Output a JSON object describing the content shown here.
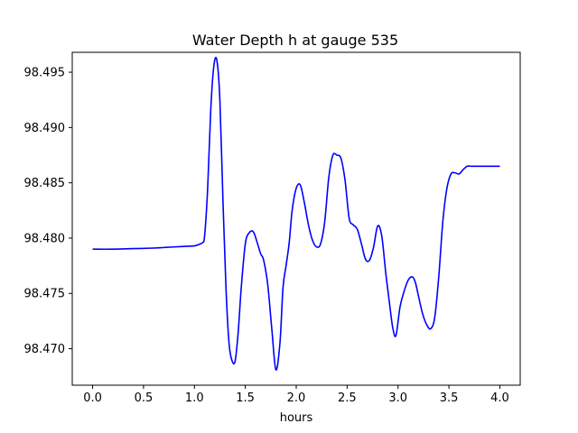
{
  "chart_data": {
    "type": "line",
    "title": "Water Depth h at gauge 535",
    "xlabel": "hours",
    "ylabel": "",
    "xlim": [
      -0.2,
      4.2
    ],
    "ylim": [
      98.4667,
      98.4968
    ],
    "xticks": [
      0.0,
      0.5,
      1.0,
      1.5,
      2.0,
      2.5,
      3.0,
      3.5,
      4.0
    ],
    "xtick_labels": [
      "0.0",
      "0.5",
      "1.0",
      "1.5",
      "2.0",
      "2.5",
      "3.0",
      "3.5",
      "4.0"
    ],
    "yticks": [
      98.47,
      98.475,
      98.48,
      98.485,
      98.49,
      98.495
    ],
    "ytick_labels": [
      "98.470",
      "98.475",
      "98.480",
      "98.485",
      "98.490",
      "98.495"
    ],
    "grid": false,
    "series": [
      {
        "color": "#0000ff",
        "x": [
          0.0,
          0.2,
          0.4,
          0.6,
          0.7,
          0.8,
          0.9,
          1.0,
          1.05,
          1.08,
          1.1,
          1.13,
          1.16,
          1.19,
          1.22,
          1.25,
          1.28,
          1.31,
          1.34,
          1.37,
          1.4,
          1.43,
          1.46,
          1.5,
          1.54,
          1.58,
          1.62,
          1.65,
          1.68,
          1.72,
          1.76,
          1.8,
          1.84,
          1.87,
          1.9,
          1.93,
          1.96,
          2.0,
          2.04,
          2.08,
          2.12,
          2.16,
          2.2,
          2.24,
          2.28,
          2.32,
          2.36,
          2.4,
          2.44,
          2.48,
          2.52,
          2.56,
          2.6,
          2.64,
          2.68,
          2.72,
          2.76,
          2.8,
          2.84,
          2.88,
          2.92,
          2.95,
          2.98,
          3.02,
          3.06,
          3.1,
          3.14,
          3.17,
          3.2,
          3.24,
          3.28,
          3.32,
          3.36,
          3.4,
          3.44,
          3.48,
          3.52,
          3.56,
          3.6,
          3.64,
          3.68,
          3.72,
          3.76,
          3.8,
          3.84,
          3.88,
          3.92,
          3.96,
          4.0
        ],
        "y": [
          98.479,
          98.479,
          98.47905,
          98.4791,
          98.47915,
          98.4792,
          98.47925,
          98.4793,
          98.47945,
          98.4796,
          98.4802,
          98.4845,
          98.4915,
          98.4955,
          98.4961,
          98.4925,
          98.4835,
          98.4755,
          98.4705,
          98.4689,
          98.4689,
          98.4715,
          98.4755,
          98.4795,
          98.4805,
          98.48055,
          98.4795,
          98.4786,
          98.478,
          98.4758,
          98.4718,
          98.4681,
          98.4705,
          98.4755,
          98.4775,
          98.4795,
          98.4825,
          98.4845,
          98.4848,
          98.4832,
          98.4812,
          98.4798,
          98.4792,
          98.4795,
          98.4815,
          98.4855,
          98.4875,
          98.4875,
          98.4872,
          98.4852,
          98.4818,
          98.4812,
          98.4808,
          98.4795,
          98.4781,
          98.478,
          98.4792,
          98.4811,
          98.4802,
          98.4768,
          98.4738,
          98.4718,
          98.4712,
          98.4738,
          98.4752,
          98.4762,
          98.4765,
          98.476,
          98.4748,
          98.4732,
          98.4722,
          98.4718,
          98.4728,
          98.4765,
          98.4815,
          98.4845,
          98.4858,
          98.4859,
          98.4858,
          98.4862,
          98.4865,
          98.4865,
          98.4865,
          98.4865,
          98.4865,
          98.4865,
          98.4865,
          98.4865,
          98.4865
        ]
      }
    ]
  }
}
